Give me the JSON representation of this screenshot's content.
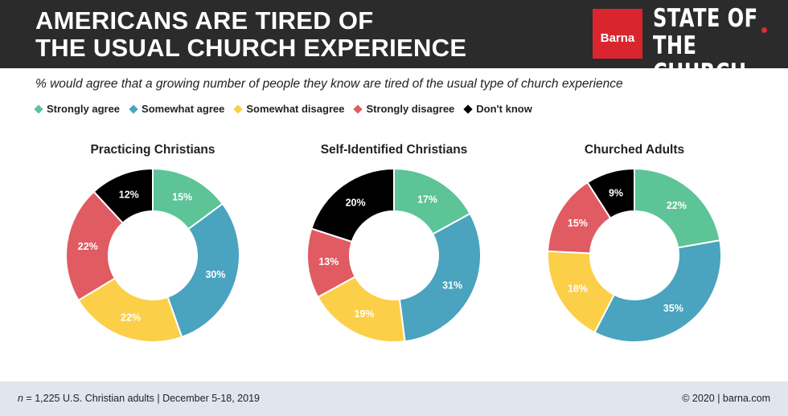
{
  "header": {
    "title_line1": "AMERICANS ARE TIRED OF",
    "title_line2": "THE USUAL CHURCH EXPERIENCE",
    "logo_brand": "Barna",
    "logo_line1": "STATE OF",
    "logo_line2": "THE CHURCH"
  },
  "subtitle": "% would agree that a growing number of people they know are tired of the usual type of church experience",
  "colors": {
    "strongly_agree": "#5cc497",
    "somewhat_agree": "#4aa3bf",
    "somewhat_disagree": "#fccf49",
    "strongly_disagree": "#e15b63",
    "dont_know": "#000000",
    "header_bg": "#2b2b2b",
    "brand_red": "#d9262e",
    "footer_bg": "#dfe6ee"
  },
  "chart_data": [
    {
      "type": "pie",
      "style": "donut",
      "title": "Practicing Christians",
      "categories": [
        "Strongly agree",
        "Somewhat agree",
        "Somewhat disagree",
        "Strongly disagree",
        "Don't know"
      ],
      "values": [
        15,
        30,
        22,
        22,
        12
      ],
      "unit": "%"
    },
    {
      "type": "pie",
      "style": "donut",
      "title": "Self-Identified Christians",
      "categories": [
        "Strongly agree",
        "Somewhat agree",
        "Somewhat disagree",
        "Strongly disagree",
        "Don't know"
      ],
      "values": [
        17,
        31,
        19,
        13,
        20
      ],
      "unit": "%"
    },
    {
      "type": "pie",
      "style": "donut",
      "title": "Churched Adults",
      "categories": [
        "Strongly agree",
        "Somewhat agree",
        "Somewhat disagree",
        "Strongly disagree",
        "Don't know"
      ],
      "values": [
        22,
        35,
        18,
        15,
        9
      ],
      "unit": "%"
    }
  ],
  "legend": {
    "placement": "top-left",
    "marker": "diamond",
    "items": [
      "Strongly agree",
      "Somewhat agree",
      "Somewhat disagree",
      "Strongly disagree",
      "Don't know"
    ]
  },
  "footer": {
    "sample_n": "n",
    "sample_text": " = 1,225 U.S. Christian adults | December 5-18, 2019",
    "copyright": "© 2020 | barna.com"
  }
}
